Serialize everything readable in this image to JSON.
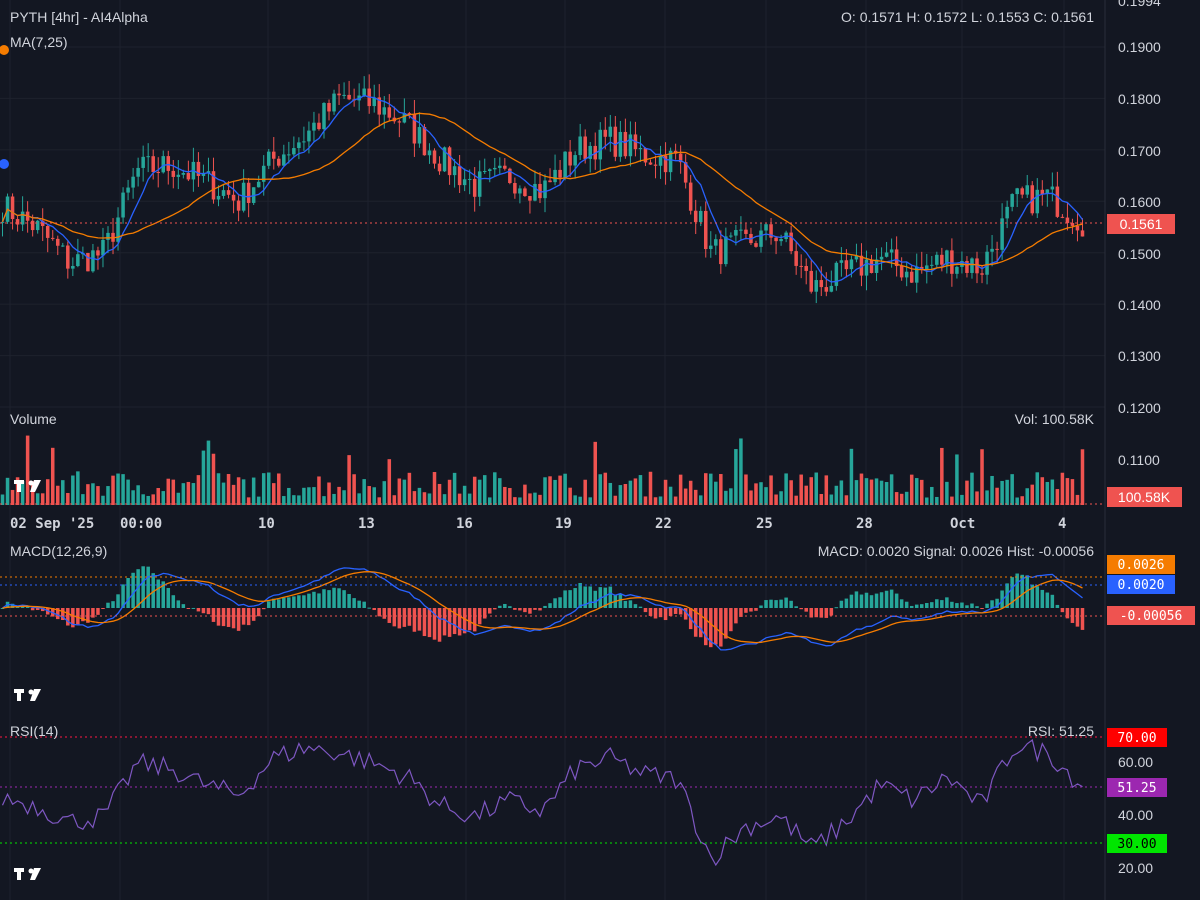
{
  "header": {
    "title": "PYTH [4hr] - AI4Alpha",
    "ma_label": "MA(7,25)",
    "ohlc": "O: 0.1571 H: 0.1572 L: 0.1553 C: 0.1561"
  },
  "volume_panel": {
    "label": "Volume",
    "readout": "Vol: 100.58K",
    "tag": "100.58K"
  },
  "macd_panel": {
    "label": "MACD(12,26,9)",
    "readout": "MACD: 0.0020 Signal: 0.0026 Hist: -0.00056",
    "tag_signal": "0.0026",
    "tag_macd": "0.0020",
    "tag_hist": "-0.00056"
  },
  "rsi_panel": {
    "label": "RSI(14)",
    "readout": "RSI: 51.25",
    "tag_upper": "70.00",
    "tag_value": "51.25",
    "tag_lower": "30.00"
  },
  "price_axis": {
    "ticks": [
      "0.1994",
      "0.1900",
      "0.1800",
      "0.1700",
      "0.1600",
      "0.1500",
      "0.1400",
      "0.1300",
      "0.1200",
      "0.1100"
    ],
    "last_price_tag": "0.1561"
  },
  "rsi_axis": {
    "ticks": [
      "60.00",
      "40.00",
      "20.00"
    ]
  },
  "time_axis": {
    "ticks": [
      "02 Sep '25",
      "00:00",
      "10",
      "13",
      "16",
      "19",
      "22",
      "25",
      "28",
      "Oct",
      "4"
    ]
  },
  "colors": {
    "background": "#131722",
    "up": "#26a69a",
    "down": "#ef5350",
    "ma_fast": "#2962ff",
    "ma_slow": "#f57c00",
    "rsi_line": "#7e57c2",
    "rsi_tag": "#9c27b0",
    "rsi_upper_tag": "#ff0000",
    "rsi_lower_tag": "#00e600",
    "grid": "#1e222d"
  },
  "chart_data": [
    {
      "type": "candlestick",
      "title": "PYTH [4hr] - AI4Alpha",
      "interval": "4hr",
      "ylim": [
        0.12,
        0.1994
      ],
      "x_range": [
        "2025-09-02",
        "2025-10-04"
      ],
      "ohlc_last": {
        "open": 0.1571,
        "high": 0.1572,
        "low": 0.1553,
        "close": 0.1561
      },
      "last_price": 0.1561,
      "series": [
        {
          "name": "MA(7,25)"
        }
      ],
      "x": [
        "09-02",
        "09-03",
        "09-04",
        "09-05",
        "09-06",
        "09-07",
        "09-08",
        "09-09",
        "09-10",
        "09-11",
        "09-12",
        "09-13",
        "09-14",
        "09-15",
        "09-16",
        "09-17",
        "09-18",
        "09-19",
        "09-20",
        "09-21",
        "09-22",
        "09-23",
        "09-24",
        "09-25",
        "09-26",
        "09-27",
        "09-28",
        "09-29",
        "09-30",
        "10-01",
        "10-02",
        "10-03",
        "10-04"
      ],
      "close_approx": [
        0.159,
        0.155,
        0.148,
        0.15,
        0.166,
        0.167,
        0.164,
        0.16,
        0.168,
        0.173,
        0.18,
        0.179,
        0.175,
        0.168,
        0.163,
        0.165,
        0.162,
        0.17,
        0.172,
        0.169,
        0.168,
        0.15,
        0.152,
        0.154,
        0.143,
        0.146,
        0.149,
        0.146,
        0.149,
        0.147,
        0.16,
        0.161,
        0.1561
      ],
      "grid": true
    },
    {
      "type": "bar",
      "title": "Volume",
      "last_value": "100.58K",
      "grid": false
    },
    {
      "type": "line",
      "title": "MACD(12,26,9)",
      "macd": 0.002,
      "signal": 0.0026,
      "hist": -0.00056,
      "series": [
        {
          "name": "MACD"
        },
        {
          "name": "Signal"
        },
        {
          "name": "Hist"
        }
      ]
    },
    {
      "type": "line",
      "title": "RSI(14)",
      "ylim": [
        15,
        75
      ],
      "levels": [
        70,
        30
      ],
      "last_value": 51.25,
      "x": [
        "09-02",
        "09-03",
        "09-04",
        "09-05",
        "09-06",
        "09-07",
        "09-08",
        "09-09",
        "09-10",
        "09-11",
        "09-12",
        "09-13",
        "09-14",
        "09-15",
        "09-16",
        "09-17",
        "09-18",
        "09-19",
        "09-20",
        "09-21",
        "09-22",
        "09-23",
        "09-24",
        "09-25",
        "09-26",
        "09-27",
        "09-28",
        "09-29",
        "09-30",
        "10-01",
        "10-02",
        "10-03",
        "10-04"
      ],
      "values": [
        47,
        44,
        38,
        40,
        60,
        58,
        52,
        48,
        62,
        66,
        64,
        60,
        55,
        44,
        40,
        46,
        42,
        58,
        62,
        56,
        54,
        24,
        36,
        40,
        28,
        38,
        52,
        46,
        55,
        44,
        67,
        64,
        51.25
      ]
    }
  ]
}
